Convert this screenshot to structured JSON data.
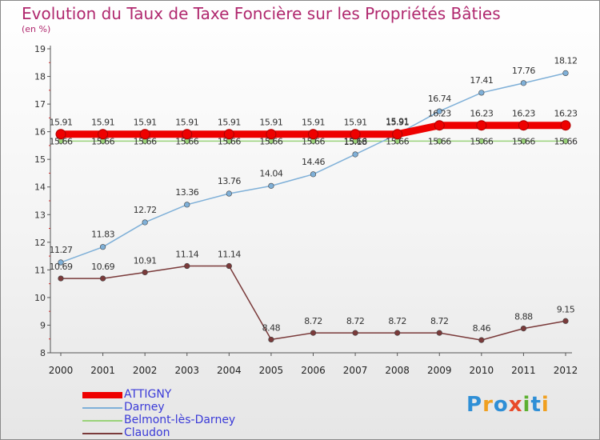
{
  "title": "Evolution du Taux de Taxe Foncière sur les Propriétés Bâties",
  "subtitle": "(en %)",
  "logo": {
    "text": "Proxiti",
    "colors": [
      "#2f8fd6",
      "#f0a020",
      "#2f8fd6",
      "#e84a2a",
      "#5cb030",
      "#2f8fd6",
      "#f0a020"
    ]
  },
  "chart_data": {
    "type": "line",
    "x": [
      "2000",
      "2001",
      "2002",
      "2003",
      "2004",
      "2005",
      "2006",
      "2007",
      "2008",
      "2009",
      "2010",
      "2011",
      "2012"
    ],
    "ylim": [
      8,
      19
    ],
    "yticks": [
      "8",
      "9",
      "10",
      "11",
      "12",
      "13",
      "14",
      "15",
      "16",
      "17",
      "18",
      "19"
    ],
    "grid": false,
    "legend": "bottom-left",
    "series": [
      {
        "name": "ATTIGNY",
        "color": "#ee0000",
        "values": [
          15.91,
          15.91,
          15.91,
          15.91,
          15.91,
          15.91,
          15.91,
          15.91,
          15.91,
          16.23,
          16.23,
          16.23,
          16.23
        ],
        "labels": [
          "15.91",
          "15.91",
          "15.91",
          "15.91",
          "15.91",
          "15.91",
          "15.91",
          "15.91",
          "15.91",
          "16.23",
          "16.23",
          "16.23",
          "16.23"
        ]
      },
      {
        "name": "Darney",
        "color": "#7fb0d8",
        "values": [
          11.27,
          11.83,
          12.72,
          13.36,
          13.76,
          14.04,
          14.46,
          15.18,
          15.91,
          16.74,
          17.41,
          17.76,
          18.12
        ],
        "labels": [
          "11.27",
          "11.83",
          "12.72",
          "13.36",
          "13.76",
          "14.04",
          "14.46",
          "15.18",
          "15.91",
          "16.74",
          "17.41",
          "17.76",
          "18.12"
        ]
      },
      {
        "name": "Belmont-lès-Darney",
        "color": "#9ad27a",
        "values": [
          15.66,
          15.66,
          15.66,
          15.66,
          15.66,
          15.66,
          15.66,
          15.66,
          15.66,
          15.66,
          15.66,
          15.66,
          15.66
        ],
        "labels": [
          "15.66",
          "15.66",
          "15.66",
          "15.66",
          "15.66",
          "15.66",
          "15.66",
          "15.66",
          "15.66",
          "15.66",
          "15.66",
          "15.66",
          "15.66"
        ]
      },
      {
        "name": "Claudon",
        "color": "#7a3a3a",
        "values": [
          10.69,
          10.69,
          10.91,
          11.14,
          11.14,
          8.48,
          8.72,
          8.72,
          8.72,
          8.72,
          8.46,
          8.88,
          9.15
        ],
        "labels": [
          "10.69",
          "10.69",
          "10.91",
          "11.14",
          "11.14",
          "8.48",
          "8.72",
          "8.72",
          "8.72",
          "8.72",
          "8.46",
          "8.88",
          "9.15"
        ]
      }
    ]
  }
}
